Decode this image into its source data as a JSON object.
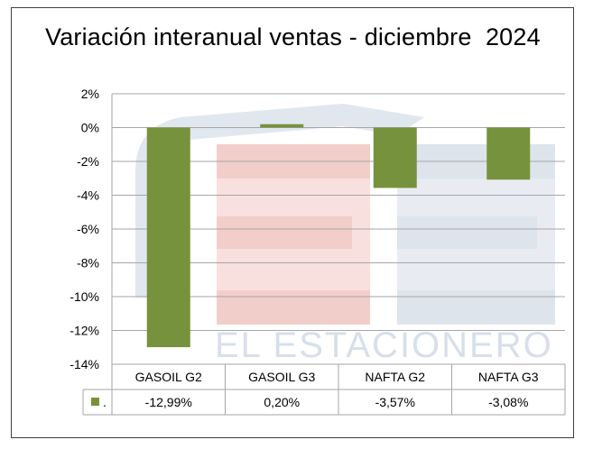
{
  "chart_data": {
    "type": "bar",
    "title": "Variación interanual ventas - diciembre  2024",
    "categories": [
      "GASOIL G2",
      "GASOIL G3",
      "NAFTA G2",
      "NAFTA G3"
    ],
    "series": [
      {
        "name": ".",
        "values": [
          -12.99,
          0.2,
          -3.57,
          -3.08
        ],
        "color": "#76923c"
      }
    ],
    "data_labels": [
      "-12,99%",
      "0,20%",
      "-3,57%",
      "-3,08%"
    ],
    "y_ticks": [
      "2%",
      "0%",
      "-2%",
      "-4%",
      "-6%",
      "-8%",
      "-10%",
      "-12%",
      "-14%"
    ],
    "ylim": [
      -14,
      2
    ],
    "grid": true,
    "legend": "data table",
    "watermark": "EL ESTACIONERO"
  }
}
